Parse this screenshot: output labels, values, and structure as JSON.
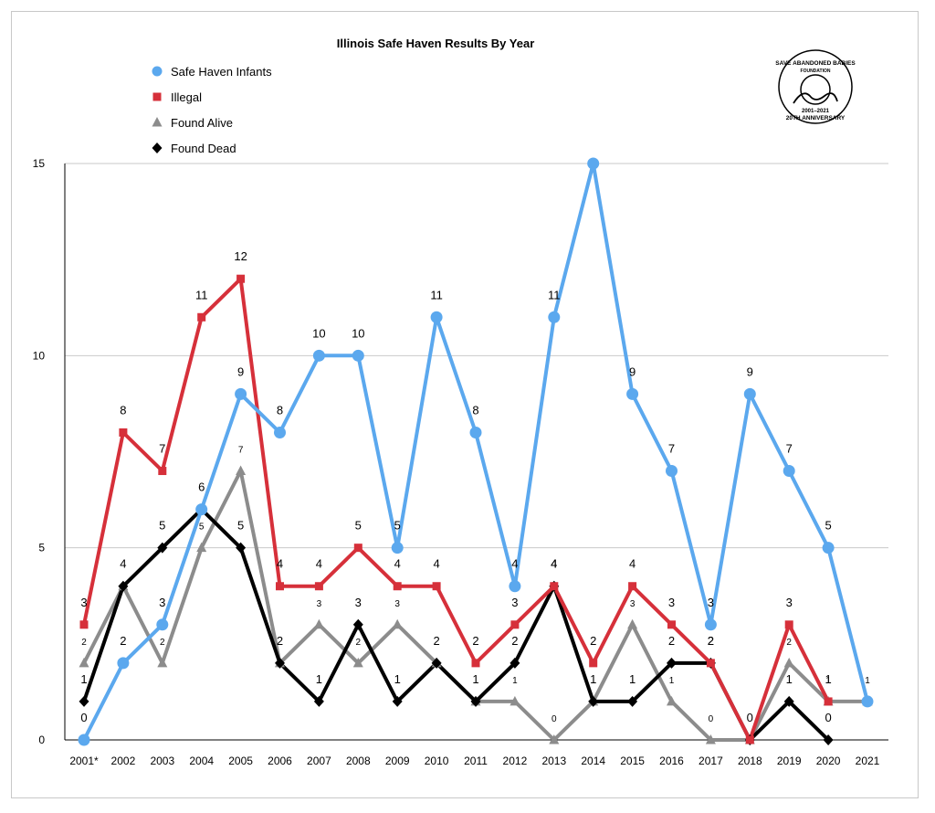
{
  "chart_data": {
    "type": "line",
    "title": "Illinois Safe Haven Results By Year",
    "categories": [
      "2001*",
      "2002",
      "2003",
      "2004",
      "2005",
      "2006",
      "2007",
      "2008",
      "2009",
      "2010",
      "2011",
      "2012",
      "2013",
      "2014",
      "2015",
      "2016",
      "2017",
      "2018",
      "2019",
      "2020",
      "2021"
    ],
    "ylim": [
      0,
      15
    ],
    "yticks": [
      0,
      5,
      10,
      15
    ],
    "grid": true,
    "legend_position": "top-left",
    "series": [
      {
        "name": "Safe Haven Infants",
        "color": "#5ba8ee",
        "marker": "circle",
        "values": [
          0,
          2,
          3,
          6,
          9,
          8,
          10,
          10,
          5,
          11,
          8,
          4,
          11,
          15,
          9,
          7,
          3,
          9,
          7,
          5,
          1
        ],
        "labels": [
          "0",
          "2",
          "3",
          "",
          "9",
          "8",
          "10",
          "10",
          "5",
          "11",
          "8",
          "4",
          "11",
          "",
          "9",
          "7",
          "3",
          "9",
          "7",
          "5",
          ""
        ]
      },
      {
        "name": "Illegal",
        "color": "#d6303a",
        "marker": "square",
        "values": [
          3,
          8,
          7,
          11,
          12,
          4,
          4,
          5,
          4,
          4,
          2,
          3,
          4,
          2,
          4,
          3,
          2,
          0,
          3,
          1,
          null
        ],
        "labels": [
          "3",
          "8",
          "7",
          "11",
          "12",
          "4",
          "4",
          "5",
          "4",
          "4",
          "2",
          "3",
          "4",
          "2",
          "4",
          "3",
          "2",
          "",
          "3",
          "1",
          ""
        ]
      },
      {
        "name": "Found Alive",
        "color": "#8c8c8c",
        "marker": "triangle",
        "values": [
          2,
          4,
          2,
          5,
          7,
          2,
          3,
          2,
          3,
          2,
          1,
          1,
          0,
          1,
          3,
          1,
          0,
          0,
          2,
          1,
          1
        ],
        "labels": [
          "2",
          "",
          "2",
          "5",
          "7",
          "",
          "3",
          "2",
          "3",
          "",
          "",
          "1",
          "0",
          "",
          "3",
          "1",
          "0",
          "",
          "2",
          "1",
          "1"
        ]
      },
      {
        "name": "Found Dead",
        "color": "#000000",
        "marker": "diamond",
        "values": [
          1,
          4,
          5,
          6,
          5,
          2,
          1,
          3,
          1,
          2,
          1,
          2,
          4,
          1,
          1,
          2,
          2,
          0,
          1,
          0,
          null
        ],
        "labels": [
          "1",
          "4",
          "5",
          "6",
          "5",
          "2",
          "1",
          "3",
          "1",
          "2",
          "1",
          "2",
          "4",
          "1",
          "1",
          "2",
          "2",
          "0",
          "1",
          "0",
          ""
        ]
      }
    ]
  },
  "logo": {
    "top_text": "SAVE ABANDONED BABIES",
    "sub_text": "FOUNDATION",
    "years": "2001–2021",
    "bottom_text": "20TH ANNIVERSARY"
  }
}
